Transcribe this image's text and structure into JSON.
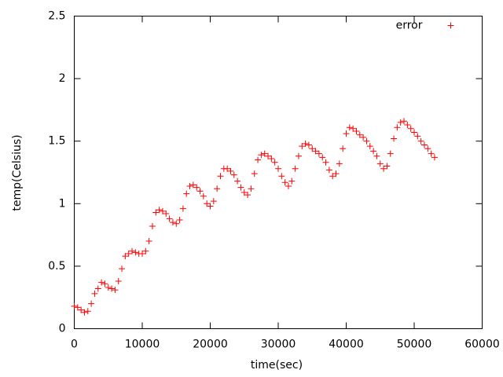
{
  "chart_data": {
    "type": "scatter",
    "x_label": "time(sec)",
    "y_label": "temp(Celsius)",
    "xlim": [
      0,
      60000
    ],
    "ylim": [
      0,
      2.5
    ],
    "xticks": [
      0,
      10000,
      20000,
      30000,
      40000,
      50000,
      60000
    ],
    "yticks": [
      0,
      0.5,
      1,
      1.5,
      2,
      2.5
    ],
    "legend": "top-right",
    "series": [
      {
        "name": "error",
        "color": "#ff0000",
        "x": [
          0,
          500,
          1000,
          1500,
          2000,
          2500,
          3000,
          3500,
          4000,
          4500,
          5000,
          5500,
          6000,
          6500,
          7000,
          7500,
          8000,
          8500,
          9000,
          9500,
          10000,
          10500,
          11000,
          11500,
          12000,
          12500,
          13000,
          13500,
          14000,
          14500,
          15000,
          15500,
          16000,
          16500,
          17000,
          17500,
          18000,
          18500,
          19000,
          19500,
          20000,
          20500,
          21000,
          21500,
          22000,
          22500,
          23000,
          23500,
          24000,
          24500,
          25000,
          25500,
          26000,
          26500,
          27000,
          27500,
          28000,
          28500,
          29000,
          29500,
          30000,
          30500,
          31000,
          31500,
          32000,
          32500,
          33000,
          33500,
          34000,
          34500,
          35000,
          35500,
          36000,
          36500,
          37000,
          37500,
          38000,
          38500,
          39000,
          39500,
          40000,
          40500,
          41000,
          41500,
          42000,
          42500,
          43000,
          43500,
          44000,
          44500,
          45000,
          45500,
          46000,
          46500,
          47000,
          47500,
          48000,
          48500,
          49000,
          49500,
          50000,
          50500,
          51000,
          51500,
          52000,
          52500,
          53000
        ],
        "values": [
          0.18,
          0.17,
          0.15,
          0.13,
          0.14,
          0.2,
          0.28,
          0.32,
          0.37,
          0.36,
          0.33,
          0.32,
          0.31,
          0.38,
          0.48,
          0.58,
          0.6,
          0.62,
          0.61,
          0.6,
          0.6,
          0.62,
          0.7,
          0.82,
          0.93,
          0.95,
          0.94,
          0.92,
          0.88,
          0.85,
          0.84,
          0.87,
          0.96,
          1.08,
          1.14,
          1.15,
          1.13,
          1.1,
          1.06,
          1.0,
          0.98,
          1.02,
          1.12,
          1.22,
          1.28,
          1.28,
          1.26,
          1.23,
          1.18,
          1.13,
          1.09,
          1.07,
          1.12,
          1.24,
          1.35,
          1.39,
          1.4,
          1.38,
          1.36,
          1.33,
          1.28,
          1.22,
          1.17,
          1.14,
          1.18,
          1.28,
          1.38,
          1.46,
          1.48,
          1.47,
          1.44,
          1.42,
          1.4,
          1.37,
          1.33,
          1.27,
          1.22,
          1.24,
          1.32,
          1.44,
          1.56,
          1.61,
          1.6,
          1.58,
          1.55,
          1.53,
          1.5,
          1.46,
          1.42,
          1.38,
          1.32,
          1.28,
          1.3,
          1.4,
          1.52,
          1.61,
          1.65,
          1.66,
          1.63,
          1.6,
          1.57,
          1.54,
          1.5,
          1.47,
          1.44,
          1.4,
          1.37
        ]
      }
    ]
  }
}
